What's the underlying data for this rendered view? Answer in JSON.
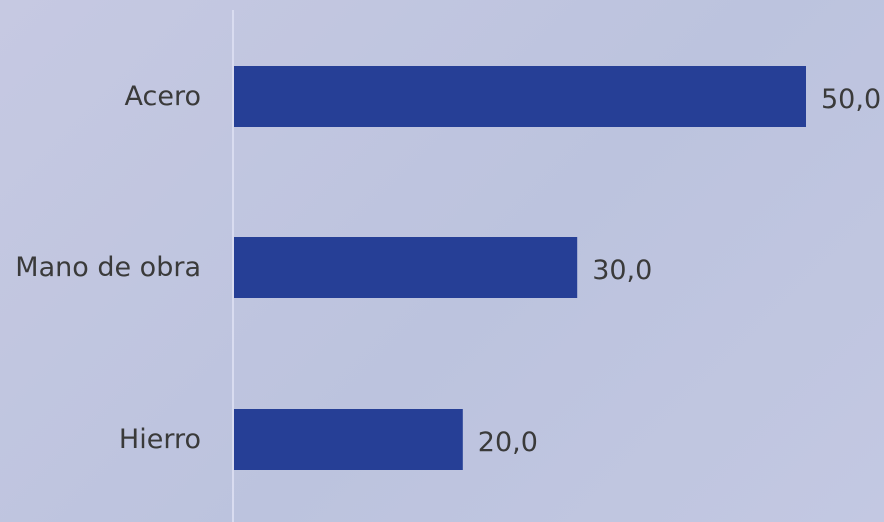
{
  "chart_data": {
    "type": "bar",
    "orientation": "horizontal",
    "categories": [
      "Acero",
      "Mano de obra",
      "Hierro"
    ],
    "values": [
      50.0,
      30.0,
      20.0
    ],
    "value_labels": [
      "50,0",
      "30,0",
      "20,0"
    ],
    "title": "",
    "xlabel": "",
    "ylabel": "",
    "xlim": [
      0,
      50
    ],
    "grid": false,
    "legend": "none",
    "colors": {
      "bar": "#263f96",
      "axis_line": "#d9dcf0",
      "text": "#3a3a3a"
    }
  }
}
